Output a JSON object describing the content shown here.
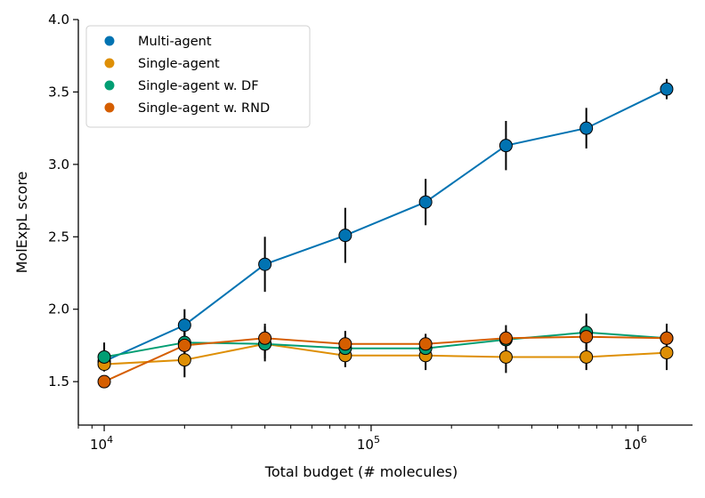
{
  "chart_data": {
    "type": "line",
    "title": "",
    "xlabel": "Total budget (# molecules)",
    "ylabel": "MolExpL score",
    "xscale": "log",
    "xlim": [
      8000,
      1600000
    ],
    "ylim": [
      1.2,
      4.0
    ],
    "yticks": [
      "1.5",
      "2.0",
      "2.5",
      "3.0",
      "3.5",
      "4.0"
    ],
    "xticks": [
      {
        "base": "10",
        "exp": "4"
      },
      {
        "base": "10",
        "exp": "5"
      },
      {
        "base": "10",
        "exp": "6"
      }
    ],
    "x": [
      10000,
      20000,
      40000,
      80000,
      160000,
      320000,
      640000,
      1280000
    ],
    "legend_position": "upper left",
    "series": [
      {
        "name": "Multi-agent",
        "color": "#0173b2",
        "values": [
          1.64,
          1.89,
          2.31,
          2.51,
          2.74,
          3.13,
          3.25,
          3.52
        ],
        "errors": [
          0.05,
          0.11,
          0.19,
          0.19,
          0.16,
          0.17,
          0.14,
          0.07
        ]
      },
      {
        "name": "Single-agent",
        "color": "#de8f05",
        "values": [
          1.62,
          1.65,
          1.76,
          1.68,
          1.68,
          1.67,
          1.67,
          1.7
        ],
        "errors": [
          0.04,
          0.12,
          0.12,
          0.08,
          0.1,
          0.11,
          0.09,
          0.12
        ]
      },
      {
        "name": "Single-agent w. DF",
        "color": "#029e73",
        "values": [
          1.67,
          1.77,
          1.76,
          1.73,
          1.73,
          1.79,
          1.84,
          1.8
        ],
        "errors": [
          0.1,
          0.09,
          0.1,
          0.08,
          0.07,
          0.07,
          0.13,
          0.06
        ]
      },
      {
        "name": "Single-agent w. RND",
        "color": "#d55e00",
        "values": [
          1.5,
          1.75,
          1.8,
          1.76,
          1.76,
          1.8,
          1.81,
          1.8
        ],
        "errors": [
          0.04,
          0.1,
          0.1,
          0.09,
          0.07,
          0.09,
          0.08,
          0.1
        ]
      }
    ]
  }
}
